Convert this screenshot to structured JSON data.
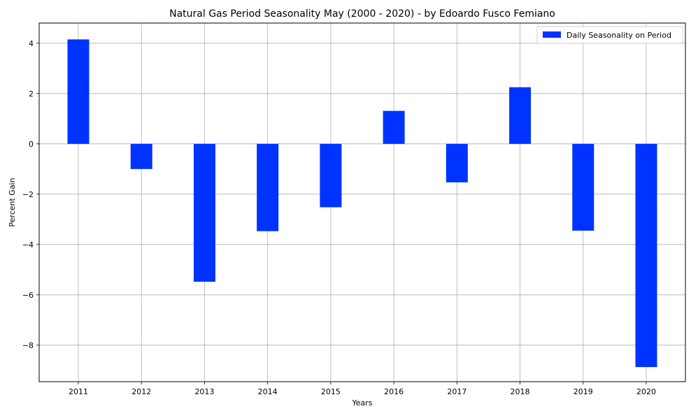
{
  "chart_data": {
    "type": "bar",
    "title": "Natural Gas Period Seasonality May (2000 - 2020)  - by Edoardo Fusco Femiano",
    "xlabel": "Years",
    "ylabel": "Percent Gain",
    "categories": [
      "2011",
      "2012",
      "2013",
      "2014",
      "2015",
      "2016",
      "2017",
      "2018",
      "2019",
      "2020"
    ],
    "series": [
      {
        "name": "Daily Seasonality on Period",
        "color": "#0033ff",
        "values": [
          4.15,
          -1.0,
          -5.48,
          -3.47,
          -2.52,
          1.31,
          -1.53,
          2.25,
          -3.45,
          -8.87
        ]
      }
    ],
    "ylim": [
      -9.45,
      4.8
    ],
    "yticks": [
      -8,
      -6,
      -4,
      -2,
      0,
      2,
      4
    ],
    "ytick_labels": [
      "−8",
      "−6",
      "−4",
      "−2",
      "0",
      "2",
      "4"
    ],
    "grid": true,
    "legend_position": "top-right"
  }
}
